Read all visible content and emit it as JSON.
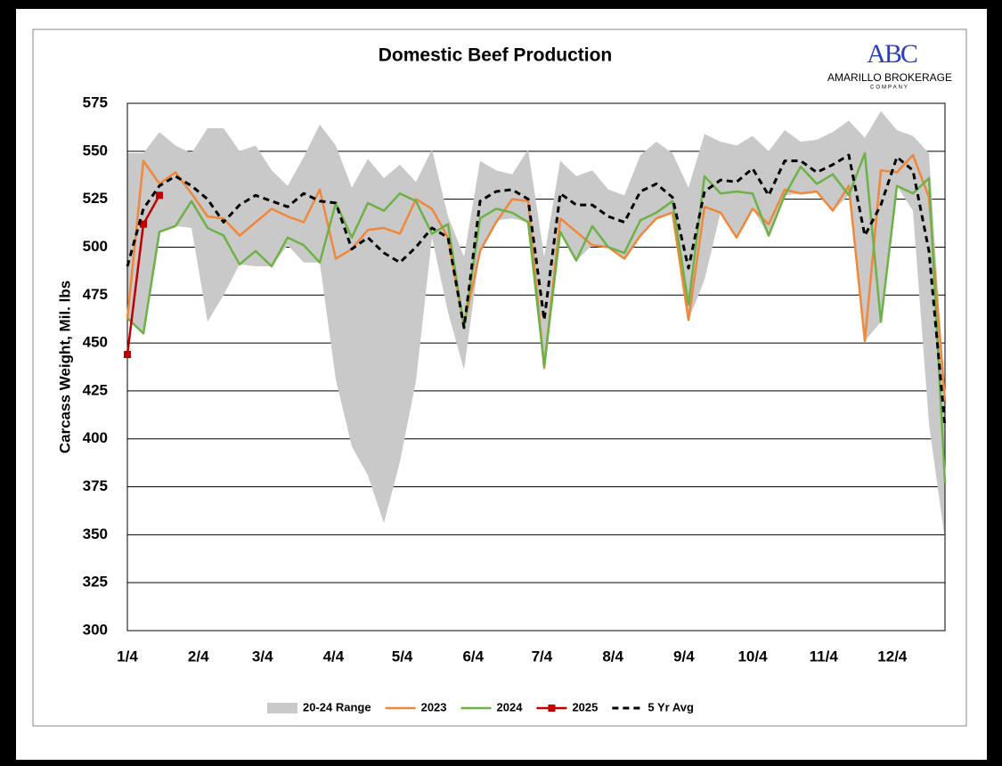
{
  "chart_data": {
    "type": "line",
    "title": "Domestic Beef Production",
    "ylabel": "Carcass Weight, Mil. lbs",
    "logo": {
      "mark": "ABC",
      "name": "AMARILLO BROKERAGE",
      "sub": "COMPANY"
    },
    "x": [
      0,
      7,
      14,
      21,
      28,
      35,
      42,
      49,
      56,
      63,
      70,
      77,
      84,
      91,
      98,
      105,
      112,
      119,
      126,
      133,
      140,
      147,
      154,
      161,
      168,
      175,
      182,
      189,
      196,
      203,
      210,
      217,
      224,
      231,
      238,
      245,
      252,
      259,
      266,
      273,
      280,
      287,
      294,
      301,
      308,
      315,
      322,
      329,
      336,
      343,
      350,
      357
    ],
    "xlim": [
      0,
      357
    ],
    "xticks": [
      {
        "value": 0,
        "label": "1/4"
      },
      {
        "value": 31,
        "label": "2/4"
      },
      {
        "value": 59,
        "label": "3/4"
      },
      {
        "value": 90,
        "label": "4/4"
      },
      {
        "value": 120,
        "label": "5/4"
      },
      {
        "value": 151,
        "label": "6/4"
      },
      {
        "value": 181,
        "label": "7/4"
      },
      {
        "value": 212,
        "label": "8/4"
      },
      {
        "value": 243,
        "label": "9/4"
      },
      {
        "value": 273,
        "label": "10/4"
      },
      {
        "value": 304,
        "label": "11/4"
      },
      {
        "value": 334,
        "label": "12/4"
      }
    ],
    "ylim": [
      300,
      575
    ],
    "yticks": [
      300,
      325,
      350,
      375,
      400,
      425,
      450,
      475,
      500,
      525,
      550,
      575
    ],
    "grid": true,
    "series": [
      {
        "name": "20-24 Range",
        "color": "#c9c9c9",
        "style": "range",
        "high": [
          549,
          549,
          560,
          553,
          549,
          562,
          562,
          550,
          553,
          540,
          532,
          547,
          564,
          553,
          531,
          546,
          536,
          543,
          534,
          551,
          516,
          495,
          545,
          540,
          538,
          551,
          495,
          545,
          537,
          540,
          530,
          527,
          548,
          555,
          549,
          531,
          559,
          555,
          553,
          558,
          550,
          561,
          555,
          556,
          560,
          566,
          557,
          571,
          561,
          558,
          549,
          420
        ],
        "low": [
          463,
          455,
          508,
          511,
          510,
          461,
          475,
          491,
          490,
          490,
          501,
          492,
          492,
          431,
          396,
          381,
          356,
          388,
          430,
          505,
          466,
          436,
          498,
          514,
          515,
          513,
          437,
          508,
          493,
          501,
          500,
          494,
          506,
          515,
          518,
          462,
          483,
          518,
          505,
          520,
          506,
          527,
          528,
          529,
          519,
          527,
          451,
          461,
          532,
          519,
          408,
          347
        ]
      },
      {
        "name": "2023",
        "color": "#f0873a",
        "style": "solid",
        "values": [
          463,
          545,
          533,
          539,
          528,
          516,
          515,
          506,
          513,
          520,
          516,
          513,
          530,
          494,
          499,
          509,
          510,
          507,
          525,
          520,
          505,
          459,
          498,
          513,
          525,
          524,
          437,
          515,
          508,
          501,
          500,
          494,
          506,
          515,
          518,
          462,
          521,
          518,
          505,
          520,
          512,
          530,
          528,
          529,
          519,
          532,
          451,
          540,
          539,
          548,
          526,
          420
        ]
      },
      {
        "name": "2024",
        "color": "#6cb246",
        "style": "solid",
        "values": [
          463,
          455,
          508,
          511,
          524,
          510,
          506,
          491,
          498,
          490,
          505,
          501,
          492,
          523,
          505,
          523,
          519,
          528,
          524,
          507,
          512,
          458,
          515,
          520,
          518,
          513,
          438,
          508,
          493,
          511,
          500,
          497,
          514,
          518,
          524,
          470,
          537,
          528,
          529,
          528,
          506,
          527,
          542,
          533,
          538,
          527,
          549,
          461,
          532,
          528,
          536,
          377
        ]
      },
      {
        "name": "2025",
        "color": "#c00000",
        "style": "solid",
        "marker": "square",
        "values": [
          444,
          512,
          527,
          null,
          null,
          null,
          null,
          null,
          null,
          null,
          null,
          null,
          null,
          null,
          null,
          null,
          null,
          null,
          null,
          null,
          null,
          null,
          null,
          null,
          null,
          null,
          null,
          null,
          null,
          null,
          null,
          null,
          null,
          null,
          null,
          null,
          null,
          null,
          null,
          null,
          null,
          null,
          null,
          null,
          null,
          null,
          null,
          null,
          null,
          null,
          null,
          null
        ]
      },
      {
        "name": "5 Yr Avg",
        "color": "#000000",
        "style": "dash",
        "values": [
          490,
          520,
          532,
          537,
          532,
          525,
          513,
          522,
          527,
          524,
          521,
          528,
          524,
          523,
          499,
          505,
          497,
          492,
          500,
          510,
          505,
          458,
          524,
          529,
          530,
          525,
          462,
          528,
          522,
          522,
          516,
          513,
          529,
          533,
          526,
          489,
          529,
          535,
          534,
          541,
          527,
          545,
          545,
          539,
          543,
          548,
          506,
          522,
          547,
          540,
          498,
          406
        ]
      }
    ]
  }
}
